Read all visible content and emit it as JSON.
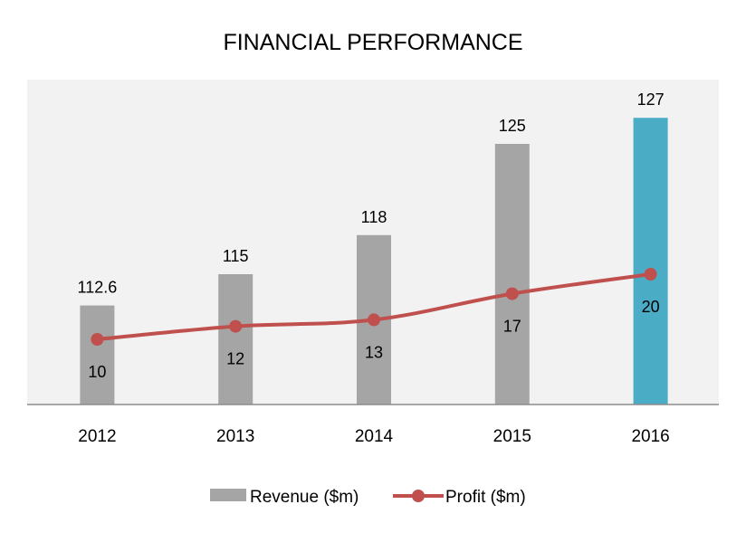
{
  "chart_data": {
    "type": "bar",
    "title": "FINANCIAL PERFORMANCE",
    "categories": [
      "2012",
      "2013",
      "2014",
      "2015",
      "2016"
    ],
    "series": [
      {
        "name": "Revenue ($m)",
        "type": "bar",
        "values": [
          112.6,
          115,
          118,
          125,
          127
        ],
        "color": "#a5a5a5",
        "highlight_color": "#4bacc6",
        "highlight_index": 4
      },
      {
        "name": "Profit ($m)",
        "type": "line",
        "values": [
          10,
          12,
          13,
          17,
          20
        ],
        "color": "#c0504d"
      }
    ],
    "value_labels": {
      "revenue": [
        "112.6",
        "115",
        "118",
        "125",
        "127"
      ],
      "profit": [
        "10",
        "12",
        "13",
        "17",
        "20"
      ]
    },
    "plot_background": "#f2f2f2",
    "grid": false,
    "legend": "bottom"
  }
}
